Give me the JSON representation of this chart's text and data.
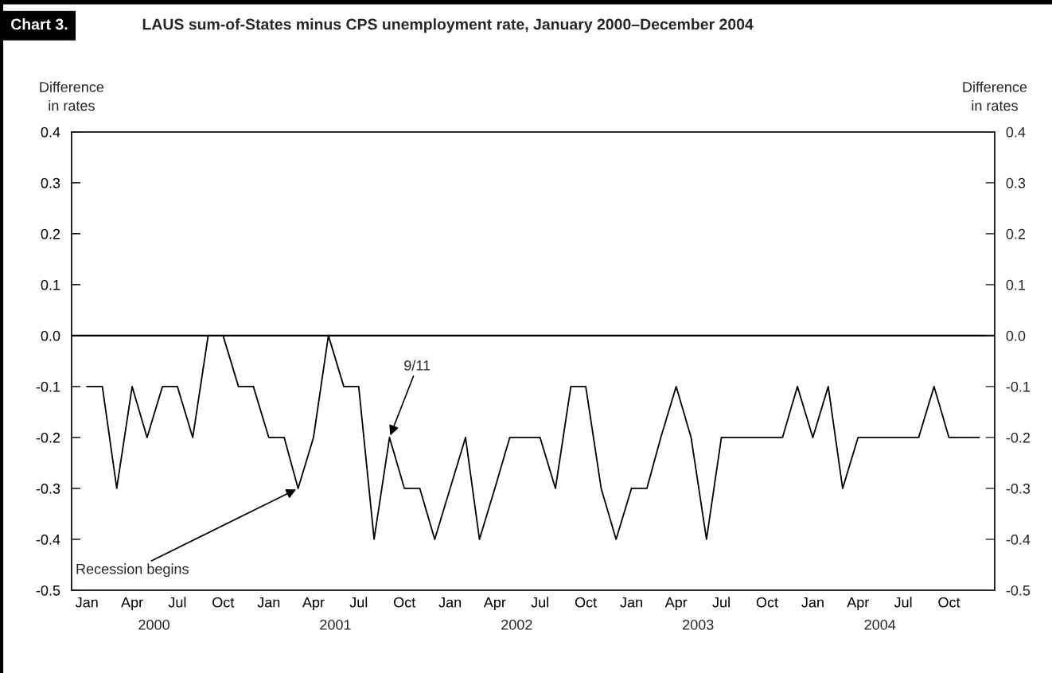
{
  "chart_data": {
    "type": "line",
    "title": "LAUS sum-of-States minus CPS unemployment rate, January 2000–December 2004",
    "ylabel": "Difference\nin rates",
    "y2label": "Difference\nin rates",
    "annotations": [
      "Chart 3.",
      {
        "text": "Recession begins",
        "x": "2001-03",
        "y": -0.3
      },
      {
        "text": "9/11",
        "x": "2001-09",
        "y": -0.2
      }
    ],
    "x": [
      "2000-01",
      "2000-02",
      "2000-03",
      "2000-04",
      "2000-05",
      "2000-06",
      "2000-07",
      "2000-08",
      "2000-09",
      "2000-10",
      "2000-11",
      "2000-12",
      "2001-01",
      "2001-02",
      "2001-03",
      "2001-04",
      "2001-05",
      "2001-06",
      "2001-07",
      "2001-08",
      "2001-09",
      "2001-10",
      "2001-11",
      "2001-12",
      "2002-01",
      "2002-02",
      "2002-03",
      "2002-04",
      "2002-05",
      "2002-06",
      "2002-07",
      "2002-08",
      "2002-09",
      "2002-10",
      "2002-11",
      "2002-12",
      "2003-01",
      "2003-02",
      "2003-03",
      "2003-04",
      "2003-05",
      "2003-06",
      "2003-07",
      "2003-08",
      "2003-09",
      "2003-10",
      "2003-11",
      "2003-12",
      "2004-01",
      "2004-02",
      "2004-03",
      "2004-04",
      "2004-05",
      "2004-06",
      "2004-07",
      "2004-08",
      "2004-09",
      "2004-10",
      "2004-11",
      "2004-12"
    ],
    "series": [
      {
        "color": "#000000",
        "values": [
          -0.1,
          -0.1,
          -0.3,
          -0.1,
          -0.2,
          -0.1,
          -0.1,
          -0.2,
          0.0,
          0.0,
          -0.1,
          -0.1,
          -0.2,
          -0.2,
          -0.3,
          -0.2,
          0.0,
          -0.1,
          -0.1,
          -0.4,
          -0.2,
          -0.3,
          -0.3,
          -0.4,
          -0.3,
          -0.2,
          -0.4,
          -0.3,
          -0.2,
          -0.2,
          -0.2,
          -0.3,
          -0.1,
          -0.1,
          -0.3,
          -0.4,
          -0.3,
          -0.3,
          -0.2,
          -0.1,
          -0.2,
          -0.4,
          -0.2,
          -0.2,
          -0.2,
          -0.2,
          -0.2,
          -0.1,
          -0.2,
          -0.1,
          -0.3,
          -0.2,
          -0.2,
          -0.2,
          -0.2,
          -0.2,
          -0.1,
          -0.2,
          -0.2,
          -0.2
        ]
      }
    ],
    "xlim": [
      "1999-12-01",
      "2005-01-01"
    ],
    "xticks": [
      {
        "value": "2000-01",
        "label": "Jan"
      },
      {
        "value": "2000-04",
        "label": "Apr"
      },
      {
        "value": "2000-07",
        "label": "Jul"
      },
      {
        "value": "2000-10",
        "label": "Oct"
      },
      {
        "value": "2001-01",
        "label": "Jan"
      },
      {
        "value": "2001-04",
        "label": "Apr"
      },
      {
        "value": "2001-07",
        "label": "Jul"
      },
      {
        "value": "2001-10",
        "label": "Oct"
      },
      {
        "value": "2002-01",
        "label": "Jan"
      },
      {
        "value": "2002-04",
        "label": "Apr"
      },
      {
        "value": "2002-07",
        "label": "Jul"
      },
      {
        "value": "2002-10",
        "label": "Oct"
      },
      {
        "value": "2003-01",
        "label": "Jan"
      },
      {
        "value": "2003-04",
        "label": "Apr"
      },
      {
        "value": "2003-07",
        "label": "Jul"
      },
      {
        "value": "2003-10",
        "label": "Oct"
      },
      {
        "value": "2004-01",
        "label": "Jan"
      },
      {
        "value": "2004-04",
        "label": "Apr"
      },
      {
        "value": "2004-07",
        "label": "Jul"
      },
      {
        "value": "2004-10",
        "label": "Oct"
      }
    ],
    "x2ticks": [
      {
        "value": "2000-05-15",
        "label": "2000"
      },
      {
        "value": "2001-05-15",
        "label": "2001"
      },
      {
        "value": "2002-05-15",
        "label": "2002"
      },
      {
        "value": "2003-05-15",
        "label": "2003"
      },
      {
        "value": "2004-05-15",
        "label": "2004"
      }
    ],
    "ylim": [
      -0.5,
      0.4
    ],
    "yticks": [
      {
        "value": 0.4,
        "label": "0.4"
      },
      {
        "value": 0.3,
        "label": "0.3"
      },
      {
        "value": 0.2,
        "label": "0.2"
      },
      {
        "value": 0.1,
        "label": "0.1"
      },
      {
        "value": 0.0,
        "label": "0.0"
      },
      {
        "value": -0.1,
        "label": "-0.1"
      },
      {
        "value": -0.2,
        "label": "-0.2"
      },
      {
        "value": -0.3,
        "label": "-0.3"
      },
      {
        "value": -0.4,
        "label": "-0.4"
      },
      {
        "value": -0.5,
        "label": "-0.5"
      }
    ],
    "y2lim": [
      -0.5,
      0.4
    ],
    "y2ticks": [
      {
        "value": 0.4,
        "label": "0.4"
      },
      {
        "value": 0.3,
        "label": "0.3"
      },
      {
        "value": 0.2,
        "label": "0.2"
      },
      {
        "value": 0.1,
        "label": "0.1"
      },
      {
        "value": 0.0,
        "label": "0.0"
      },
      {
        "value": -0.1,
        "label": "-0.1"
      },
      {
        "value": -0.2,
        "label": "-0.2"
      },
      {
        "value": -0.3,
        "label": "-0.3"
      },
      {
        "value": -0.4,
        "label": "-0.4"
      },
      {
        "value": -0.5,
        "label": "-0.5"
      }
    ],
    "ref_lines": [
      {
        "axis": "y",
        "value": 0.0,
        "color": "#000000"
      }
    ],
    "x2lim": [
      "1999-12-01",
      "2005-01-01"
    ],
    "grid": false,
    "marker": "none",
    "line_style": "solid"
  }
}
